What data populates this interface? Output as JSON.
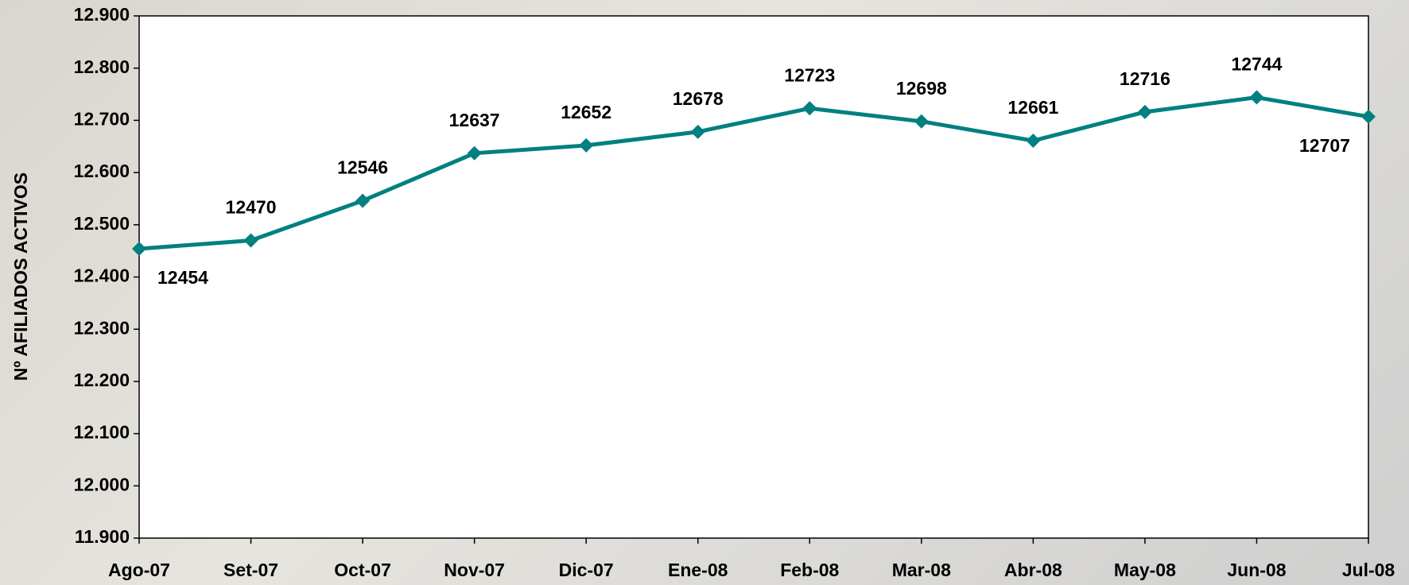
{
  "chart_data": {
    "type": "line",
    "y_label": "Nº AFILIADOS ACTIVOS",
    "categories": [
      "Ago-07",
      "Set-07",
      "Oct-07",
      "Nov-07",
      "Dic-07",
      "Ene-08",
      "Feb-08",
      "Mar-08",
      "Abr-08",
      "May-08",
      "Jun-08",
      "Jul-08"
    ],
    "series": [
      {
        "name": "Afiliados",
        "color": "#008080",
        "values": [
          12454,
          12470,
          12546,
          12637,
          12652,
          12678,
          12723,
          12698,
          12661,
          12716,
          12744,
          12707
        ]
      }
    ],
    "ylim": [
      11900,
      12900
    ],
    "yticks": [
      {
        "value": 11900,
        "label": "11.900"
      },
      {
        "value": 12000,
        "label": "12.000"
      },
      {
        "value": 12100,
        "label": "12.100"
      },
      {
        "value": 12200,
        "label": "12.200"
      },
      {
        "value": 12300,
        "label": "12.300"
      },
      {
        "value": 12400,
        "label": "12.400"
      },
      {
        "value": 12500,
        "label": "12.500"
      },
      {
        "value": 12600,
        "label": "12.600"
      },
      {
        "value": 12700,
        "label": "12.700"
      },
      {
        "value": 12800,
        "label": "12.800"
      },
      {
        "value": 12900,
        "label": "12.900"
      }
    ],
    "grid": false
  }
}
